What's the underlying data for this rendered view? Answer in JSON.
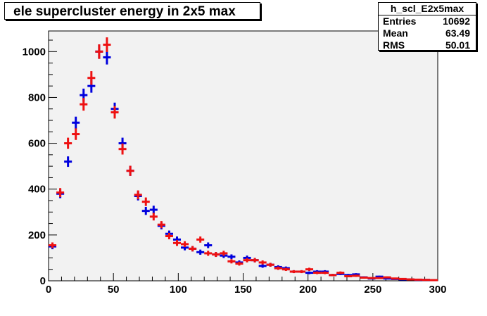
{
  "title": "ele supercluster energy in 2x5 max",
  "stats": {
    "name": "h_scl_E2x5max",
    "rows": [
      {
        "label": "Entries",
        "value": "10692"
      },
      {
        "label": "Mean",
        "value": "63.49"
      },
      {
        "label": "RMS",
        "value": "50.01"
      }
    ]
  },
  "colors": {
    "series_blue": "#0000dd",
    "series_red": "#ee1111",
    "frame_bg": "#f2f2f2"
  },
  "chart_data": {
    "type": "scatter",
    "title": "ele supercluster energy in 2x5 max",
    "xlabel": "",
    "ylabel": "",
    "xlim": [
      0,
      300
    ],
    "ylim": [
      0,
      1090
    ],
    "x_ticks": [
      0,
      50,
      100,
      150,
      200,
      250,
      300
    ],
    "y_ticks": [
      0,
      200,
      400,
      600,
      800,
      1000
    ],
    "bin_width": 6,
    "series": [
      {
        "color": "#0000dd",
        "x": [
          3,
          9,
          15,
          21,
          27,
          33,
          39,
          45,
          51,
          57,
          63,
          69,
          75,
          81,
          87,
          93,
          99,
          105,
          111,
          117,
          123,
          129,
          135,
          141,
          147,
          153,
          159,
          165,
          171,
          177,
          183,
          189,
          195,
          201,
          207,
          213,
          219,
          225,
          231,
          237,
          243,
          249,
          255,
          261,
          267,
          273,
          279,
          285,
          291,
          297
        ],
        "y": [
          150,
          380,
          520,
          690,
          810,
          850,
          1000,
          975,
          750,
          600,
          480,
          370,
          305,
          310,
          240,
          205,
          180,
          145,
          140,
          125,
          155,
          115,
          110,
          105,
          80,
          100,
          90,
          65,
          70,
          60,
          55,
          40,
          40,
          35,
          40,
          40,
          25,
          30,
          25,
          28,
          15,
          10,
          18,
          10,
          8,
          6,
          6,
          4,
          4,
          3
        ]
      },
      {
        "color": "#ee1111",
        "x": [
          3,
          9,
          15,
          21,
          27,
          33,
          39,
          45,
          51,
          57,
          63,
          69,
          75,
          81,
          87,
          93,
          99,
          105,
          111,
          117,
          123,
          129,
          135,
          141,
          147,
          153,
          159,
          165,
          171,
          177,
          183,
          189,
          195,
          201,
          207,
          213,
          219,
          225,
          231,
          237,
          243,
          249,
          255,
          261,
          267,
          273,
          279,
          285,
          291,
          297
        ],
        "y": [
          155,
          385,
          600,
          640,
          770,
          885,
          1000,
          1030,
          735,
          575,
          480,
          375,
          345,
          280,
          245,
          195,
          165,
          160,
          140,
          180,
          120,
          115,
          120,
          85,
          75,
          90,
          90,
          80,
          70,
          55,
          50,
          40,
          40,
          50,
          35,
          35,
          25,
          35,
          20,
          22,
          14,
          12,
          12,
          15,
          10,
          8,
          6,
          5,
          4,
          3
        ]
      }
    ]
  }
}
